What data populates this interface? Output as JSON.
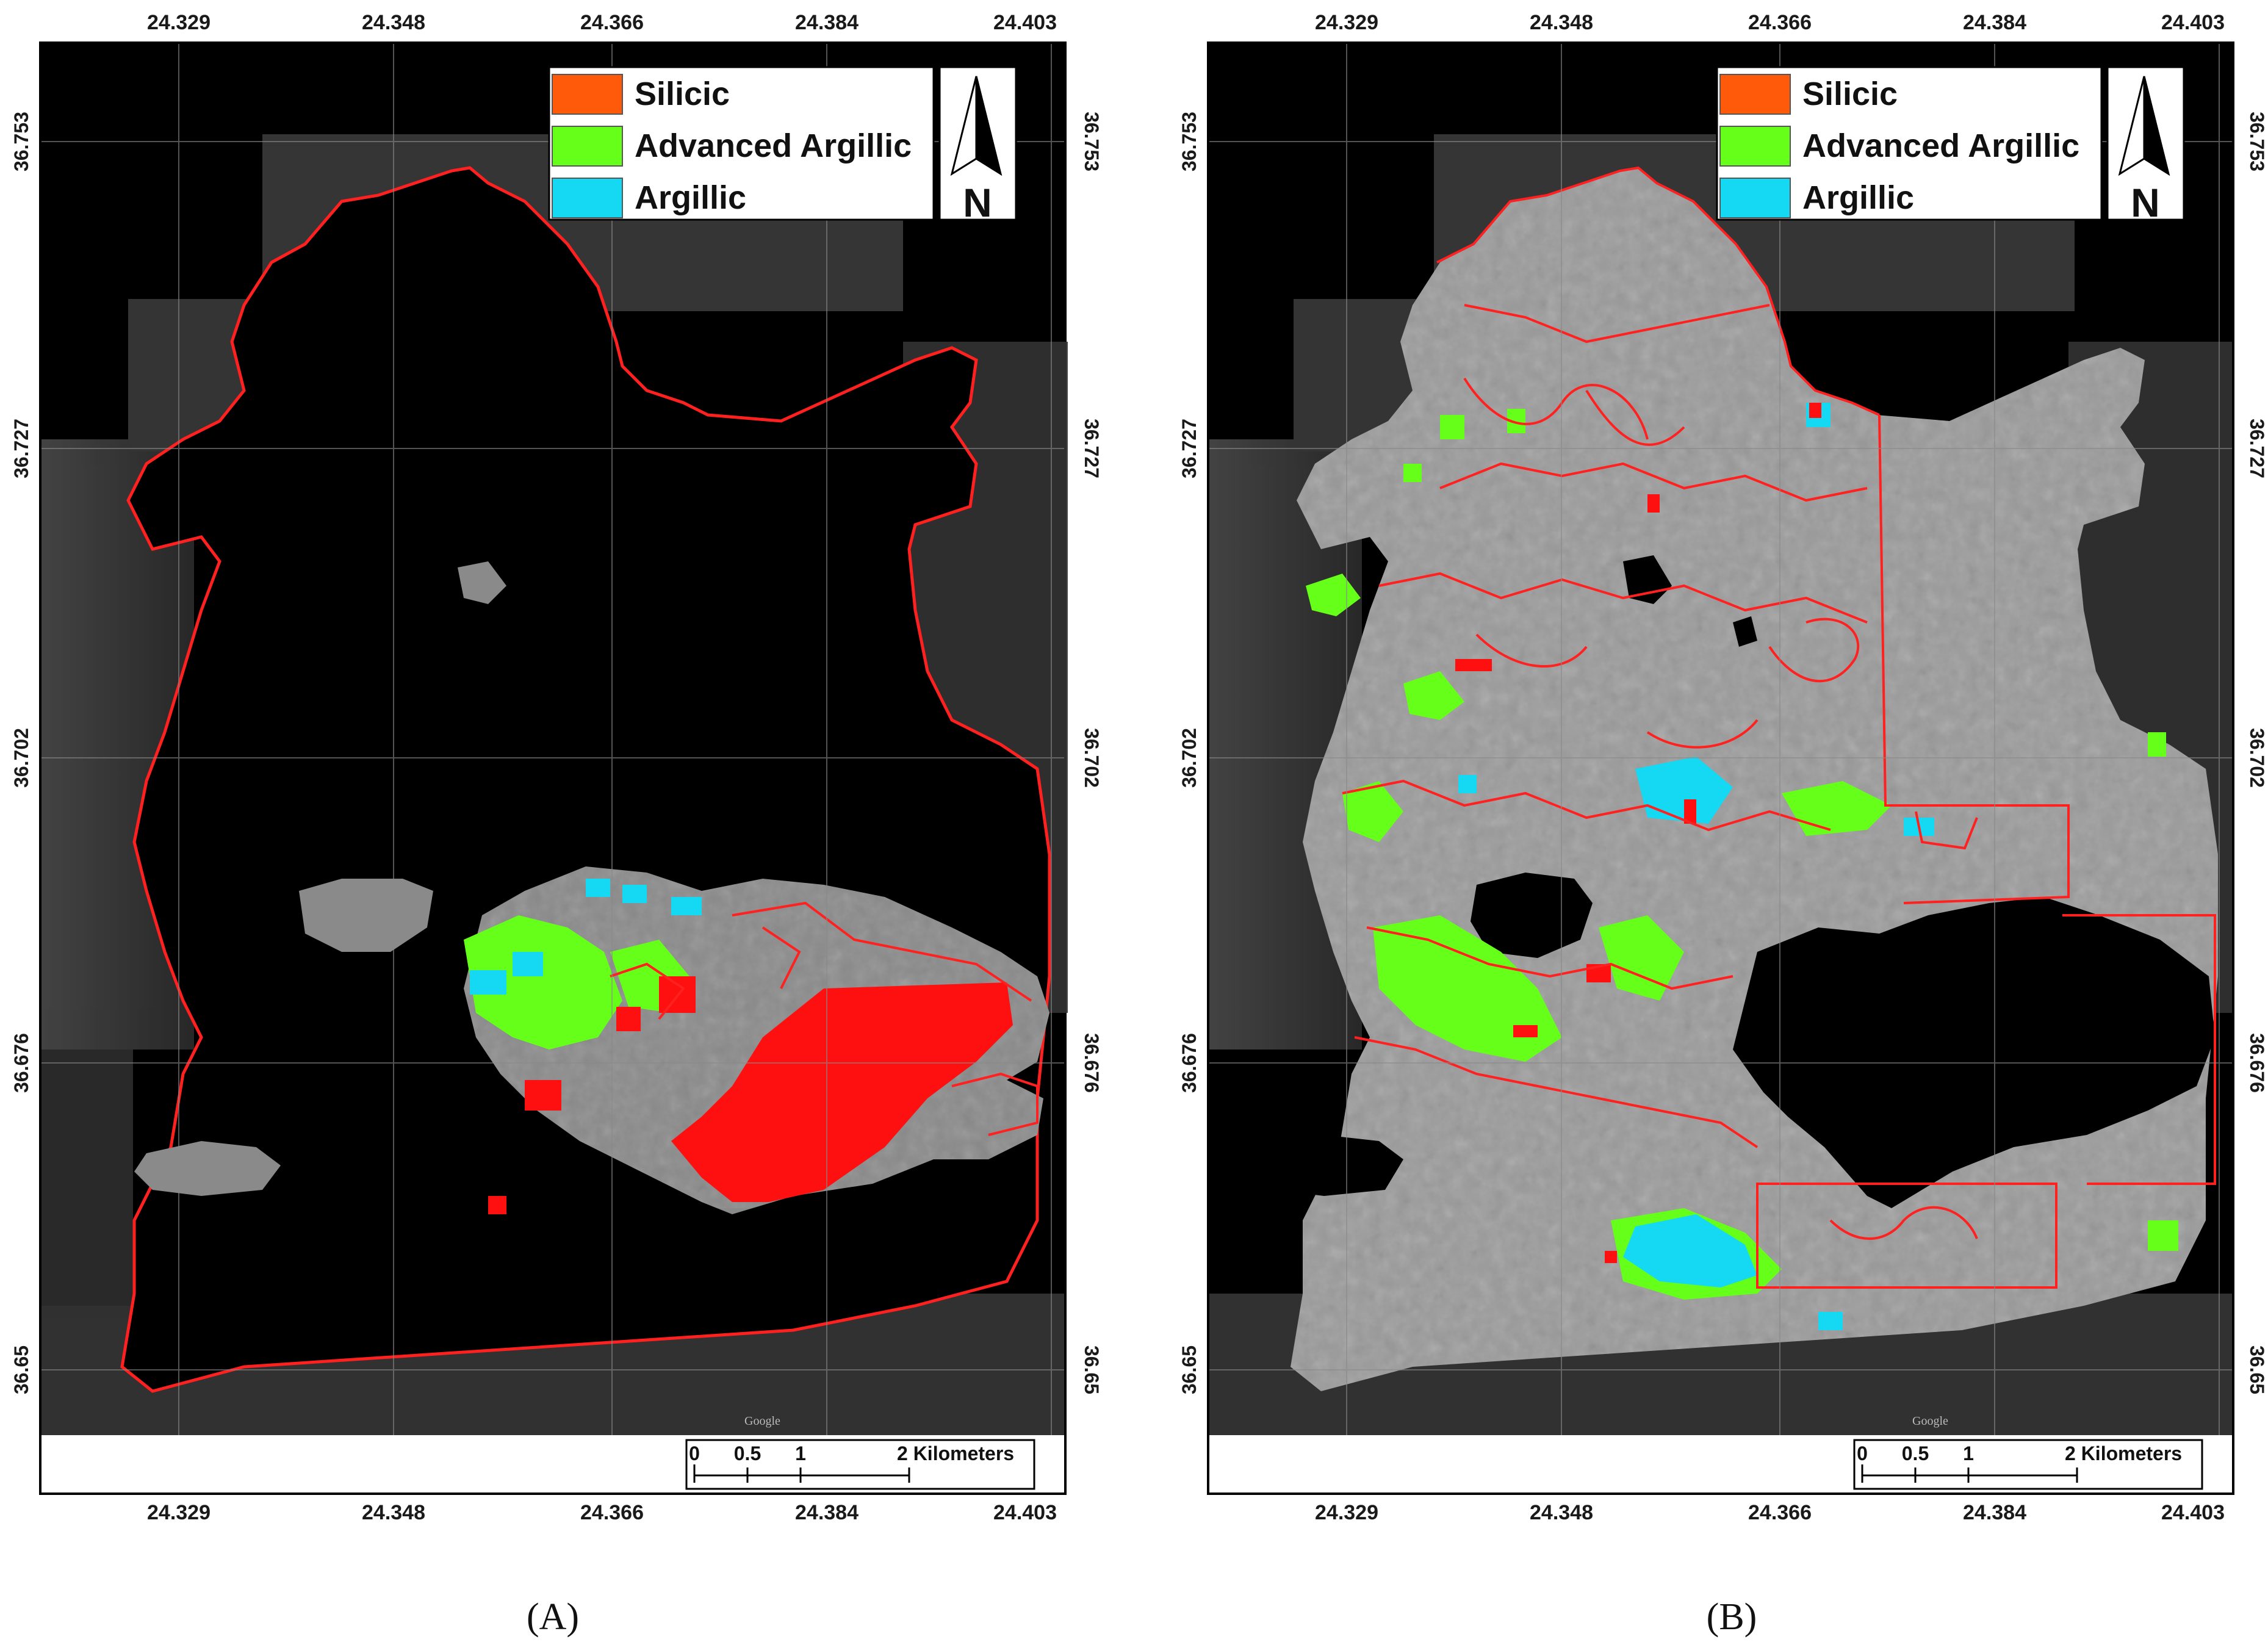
{
  "figure": {
    "panels": [
      {
        "id": "A",
        "caption": "(A)",
        "lon_ticks": [
          "24.329",
          "24.348",
          "24.366",
          "24.384",
          "24.403"
        ],
        "lat_ticks": [
          "36.753",
          "36.727",
          "36.702",
          "36.676",
          "36.65"
        ],
        "scale_bar": {
          "labels": [
            "0",
            "0.5",
            "1",
            "2 Kilometers"
          ]
        },
        "north_label": "N"
      },
      {
        "id": "B",
        "caption": "(B)",
        "lon_ticks": [
          "24.329",
          "24.348",
          "24.366",
          "24.384",
          "24.403"
        ],
        "lat_ticks": [
          "36.753",
          "36.727",
          "36.702",
          "36.676",
          "36.65"
        ],
        "scale_bar": {
          "labels": [
            "0",
            "0.5",
            "1",
            "2 Kilometers"
          ]
        },
        "north_label": "N"
      }
    ],
    "legend": [
      {
        "label": "Silicic",
        "color": "#ff5a0a"
      },
      {
        "label": "Advanced Argillic",
        "color": "#66ff1a"
      },
      {
        "label": "Argillic",
        "color": "#15d8f2"
      }
    ],
    "watermark": "Google",
    "colors": {
      "mask": "#000000",
      "imagery": "#8e8e8e",
      "outline": "#ff1a1a",
      "silicic_block": "#ff1010",
      "grid": "#8a8a8a"
    }
  }
}
